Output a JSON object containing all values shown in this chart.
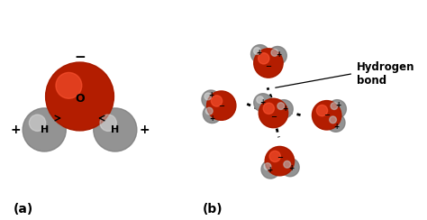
{
  "bg_color": "#ffffff",
  "red_color": "#cc2200",
  "red_hi": "#ff5533",
  "gray_color": "#a8a8a8",
  "gray_hi": "#d8d8d8",
  "label_a": "(a)",
  "label_b": "(b)",
  "hbond_label": "Hydrogen\nbond",
  "minus_sign": "−",
  "plus_sign": "+"
}
